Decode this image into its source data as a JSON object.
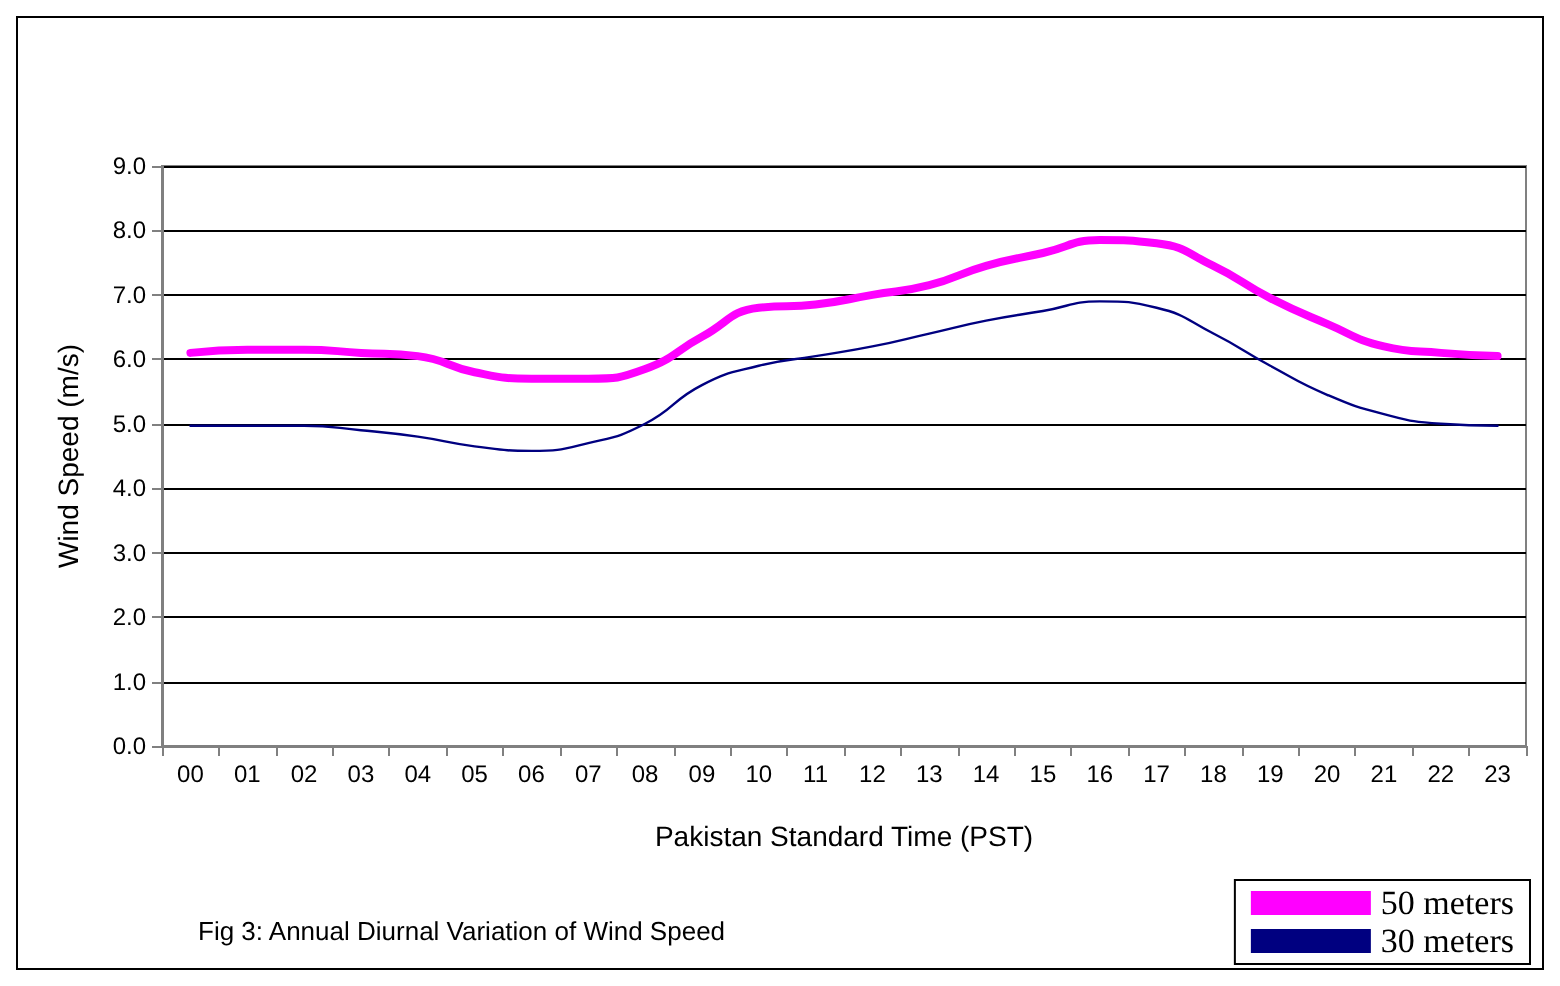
{
  "chart_data": {
    "type": "line",
    "xlabel": "Pakistan Standard Time (PST)",
    "ylabel": "Wind Speed (m/s)",
    "annotations": [
      "Fig 3: Annual Diurnal Variation of Wind Speed"
    ],
    "categories": [
      "00",
      "01",
      "02",
      "03",
      "04",
      "05",
      "06",
      "07",
      "08",
      "09",
      "10",
      "11",
      "12",
      "13",
      "14",
      "15",
      "16",
      "17",
      "18",
      "19",
      "20",
      "21",
      "22",
      "23"
    ],
    "series": [
      {
        "name": "50 meters",
        "color": "#ff00ff",
        "values": [
          6.1,
          6.15,
          6.15,
          6.1,
          6.05,
          5.8,
          5.7,
          5.7,
          5.85,
          6.35,
          6.8,
          6.85,
          7.0,
          7.15,
          7.45,
          7.65,
          7.85,
          7.8,
          7.45,
          6.95,
          6.55,
          6.2,
          6.1,
          6.05
        ]
      },
      {
        "name": "30 meters",
        "color": "#000080",
        "values": [
          4.97,
          4.97,
          4.97,
          4.9,
          4.8,
          4.65,
          4.58,
          4.7,
          5.0,
          5.6,
          5.9,
          6.05,
          6.2,
          6.4,
          6.6,
          6.75,
          6.9,
          6.8,
          6.4,
          5.9,
          5.45,
          5.15,
          5.0,
          4.97
        ]
      }
    ],
    "ylim": [
      0,
      9
    ],
    "yticks": [
      {
        "value": 0,
        "label": "0.0"
      },
      {
        "value": 1,
        "label": "1.0"
      },
      {
        "value": 2,
        "label": "2.0"
      },
      {
        "value": 3,
        "label": "3.0"
      },
      {
        "value": 4,
        "label": "4.0"
      },
      {
        "value": 5,
        "label": "5.0"
      },
      {
        "value": 6,
        "label": "6.0"
      },
      {
        "value": 7,
        "label": "7.0"
      },
      {
        "value": 8,
        "label": "8.0"
      },
      {
        "value": 9,
        "label": "9.0"
      }
    ],
    "grid": "y",
    "legend": "bottom right",
    "marker": "none",
    "line_style": "solid"
  }
}
